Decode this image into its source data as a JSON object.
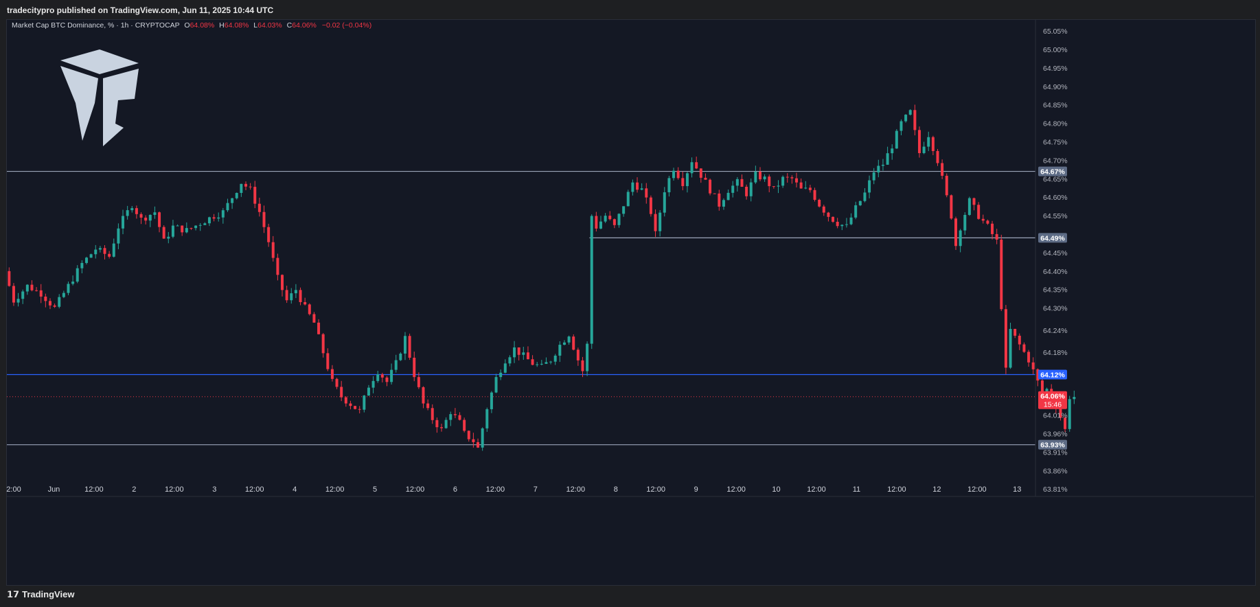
{
  "header": {
    "publisher": "tradecitypro published on TradingView.com, Jun 11, 2025 10:44 UTC"
  },
  "footer": {
    "logo_glyph": "𝟭𝟳",
    "brand": "TradingView"
  },
  "legend": {
    "symbol": "Market Cap BTC Dominance, % · 1h · CRYPTOCAP",
    "o_label": "O",
    "o_value": "64.08%",
    "h_label": "H",
    "h_value": "64.08%",
    "l_label": "L",
    "l_value": "64.03%",
    "c_label": "C",
    "c_value": "64.06%",
    "change": "−0.02 (−0.04%)"
  },
  "colors": {
    "up": "#26a69a",
    "down": "#f23645",
    "level": "#9aa4b8",
    "blue_level": "#2962ff",
    "bg": "#141824"
  },
  "price_axis": {
    "ticks": [
      "65.05%",
      "65.00%",
      "64.95%",
      "64.90%",
      "64.85%",
      "64.80%",
      "64.75%",
      "64.70%",
      "64.65%",
      "64.60%",
      "64.55%",
      "64.45%",
      "64.40%",
      "64.35%",
      "64.30%",
      "64.24%",
      "64.18%",
      "64.01%",
      "63.96%",
      "63.91%",
      "63.86%",
      "63.81%"
    ]
  },
  "time_axis": {
    "labels": [
      "2:00",
      "Jun",
      "12:00",
      "2",
      "12:00",
      "3",
      "12:00",
      "4",
      "12:00",
      "5",
      "12:00",
      "6",
      "12:00",
      "7",
      "12:00",
      "8",
      "12:00",
      "9",
      "12:00",
      "10",
      "12:00",
      "11",
      "12:00",
      "12",
      "12:00",
      "13"
    ]
  },
  "chart_data": {
    "type": "candlestick",
    "title": "Market Cap BTC Dominance, % · 1h · CRYPTOCAP",
    "ylim": [
      63.79,
      65.08
    ],
    "xlim_hours": [
      -22,
      204
    ],
    "x_unit": "hours from Jun 1 00:00 UTC",
    "grid": false,
    "horizontal_levels": [
      {
        "label": "64.67%",
        "value": 64.67,
        "from_hour": -22,
        "style": "gray"
      },
      {
        "label": "64.49%",
        "value": 64.49,
        "from_hour": 106,
        "style": "gray"
      },
      {
        "label": "64.12%",
        "value": 64.12,
        "from_hour": -22,
        "style": "blue"
      },
      {
        "label": "63.93%",
        "value": 63.93,
        "from_hour": -22,
        "style": "gray"
      }
    ],
    "last_price": {
      "label": "64.06%",
      "countdown": "15:46",
      "value": 64.06
    },
    "path_points": [
      [
        -22,
        64.4
      ],
      [
        -20,
        64.32
      ],
      [
        -17,
        64.36
      ],
      [
        -14,
        64.34
      ],
      [
        -11,
        64.3
      ],
      [
        -8,
        64.36
      ],
      [
        -5,
        64.42
      ],
      [
        -2,
        64.46
      ],
      [
        1,
        64.44
      ],
      [
        3,
        64.52
      ],
      [
        6,
        64.58
      ],
      [
        8,
        64.54
      ],
      [
        11,
        64.56
      ],
      [
        13,
        64.48
      ],
      [
        15,
        64.52
      ],
      [
        18,
        64.51
      ],
      [
        21,
        64.53
      ],
      [
        24,
        64.55
      ],
      [
        26,
        64.56
      ],
      [
        28,
        64.6
      ],
      [
        30,
        64.64
      ],
      [
        32,
        64.62
      ],
      [
        34,
        64.56
      ],
      [
        36,
        64.48
      ],
      [
        38,
        64.38
      ],
      [
        40,
        64.32
      ],
      [
        42,
        64.35
      ],
      [
        44,
        64.3
      ],
      [
        46,
        64.26
      ],
      [
        48,
        64.18
      ],
      [
        50,
        64.1
      ],
      [
        52,
        64.06
      ],
      [
        54,
        64.04
      ],
      [
        56,
        64.02
      ],
      [
        58,
        64.09
      ],
      [
        60,
        64.13
      ],
      [
        62,
        64.1
      ],
      [
        64,
        64.15
      ],
      [
        66,
        64.22
      ],
      [
        68,
        64.12
      ],
      [
        70,
        64.04
      ],
      [
        72,
        64.0
      ],
      [
        74,
        63.97
      ],
      [
        76,
        64.02
      ],
      [
        78,
        63.99
      ],
      [
        79,
        63.96
      ],
      [
        81,
        63.94
      ],
      [
        82,
        63.92
      ],
      [
        84,
        64.03
      ],
      [
        86,
        64.11
      ],
      [
        88,
        64.16
      ],
      [
        90,
        64.19
      ],
      [
        92,
        64.17
      ],
      [
        94,
        64.15
      ],
      [
        96,
        64.14
      ],
      [
        98,
        64.16
      ],
      [
        100,
        64.2
      ],
      [
        102,
        64.23
      ],
      [
        104,
        64.16
      ],
      [
        105,
        64.13
      ],
      [
        106,
        64.2
      ],
      [
        107,
        64.55
      ],
      [
        108,
        64.52
      ],
      [
        110,
        64.55
      ],
      [
        112,
        64.52
      ],
      [
        114,
        64.58
      ],
      [
        116,
        64.64
      ],
      [
        118,
        64.62
      ],
      [
        120,
        64.56
      ],
      [
        121,
        64.5
      ],
      [
        123,
        64.62
      ],
      [
        125,
        64.68
      ],
      [
        127,
        64.64
      ],
      [
        129,
        64.7
      ],
      [
        131,
        64.66
      ],
      [
        133,
        64.62
      ],
      [
        135,
        64.58
      ],
      [
        137,
        64.62
      ],
      [
        139,
        64.64
      ],
      [
        141,
        64.61
      ],
      [
        143,
        64.66
      ],
      [
        145,
        64.65
      ],
      [
        147,
        64.62
      ],
      [
        149,
        64.65
      ],
      [
        151,
        64.65
      ],
      [
        153,
        64.62
      ],
      [
        155,
        64.62
      ],
      [
        157,
        64.58
      ],
      [
        159,
        64.55
      ],
      [
        161,
        64.53
      ],
      [
        163,
        64.52
      ],
      [
        165,
        64.57
      ],
      [
        167,
        64.61
      ],
      [
        169,
        64.67
      ],
      [
        171,
        64.69
      ],
      [
        173,
        64.74
      ],
      [
        175,
        64.8
      ],
      [
        177,
        64.83
      ],
      [
        179,
        64.72
      ],
      [
        181,
        64.77
      ],
      [
        183,
        64.7
      ],
      [
        184,
        64.65
      ],
      [
        186,
        64.55
      ],
      [
        187,
        64.47
      ],
      [
        188,
        64.52
      ],
      [
        190,
        64.59
      ],
      [
        192,
        64.55
      ],
      [
        194,
        64.52
      ],
      [
        196,
        64.48
      ],
      [
        198,
        64.13
      ],
      [
        199,
        64.24
      ],
      [
        201,
        64.2
      ],
      [
        203,
        64.16
      ],
      [
        205,
        64.1
      ],
      [
        206,
        64.05
      ],
      [
        207,
        64.08
      ],
      [
        209,
        64.04
      ],
      [
        211,
        63.97
      ],
      [
        212,
        64.06
      ]
    ]
  }
}
